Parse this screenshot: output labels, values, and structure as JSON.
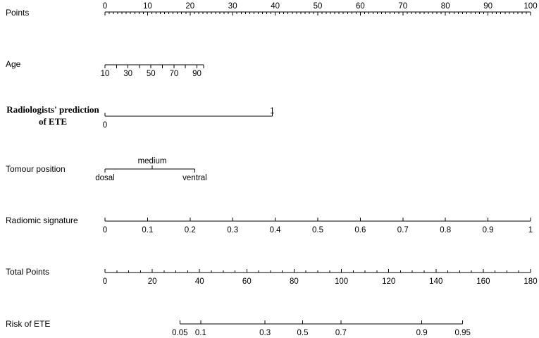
{
  "chart_data": {
    "type": "nomogram",
    "rows": [
      {
        "id": "points",
        "label": "Points",
        "label_style": "sans",
        "scale": [
          0,
          100
        ],
        "ticks": [
          {
            "v": 0,
            "t": "0"
          },
          {
            "v": 10,
            "t": "10"
          },
          {
            "v": 20,
            "t": "20"
          },
          {
            "v": 30,
            "t": "30"
          },
          {
            "v": 40,
            "t": "40"
          },
          {
            "v": 50,
            "t": "50"
          },
          {
            "v": 60,
            "t": "60"
          },
          {
            "v": 70,
            "t": "70"
          },
          {
            "v": 80,
            "t": "80"
          },
          {
            "v": 90,
            "t": "90"
          },
          {
            "v": 100,
            "t": "100"
          }
        ],
        "minor_step": 1,
        "tick_side": "down",
        "label_side": "above"
      },
      {
        "id": "age",
        "label": "Age",
        "label_style": "sans",
        "scale": [
          10,
          90
        ],
        "ticks": [
          {
            "v": 10,
            "t": "10",
            "p": 0
          },
          {
            "v": 20,
            "t": "",
            "p": 2.7
          },
          {
            "v": 30,
            "t": "30",
            "p": 5.4
          },
          {
            "v": 40,
            "t": "",
            "p": 8.1
          },
          {
            "v": 50,
            "t": "50",
            "p": 10.8
          },
          {
            "v": 60,
            "t": "",
            "p": 13.5
          },
          {
            "v": 70,
            "t": "70",
            "p": 16.2
          },
          {
            "v": 80,
            "t": "",
            "p": 18.9
          },
          {
            "v": 90,
            "t": "90",
            "p": 21.6
          },
          {
            "v": null,
            "t": "",
            "p": 23.2
          }
        ],
        "tick_side": "down",
        "label_side": "below"
      },
      {
        "id": "radiologists",
        "label": "Radiologists' prediction",
        "label2": "of ETE",
        "label_style": "serif",
        "ticks": [
          {
            "v": 0,
            "t": "0",
            "p": 0,
            "side": "below"
          },
          {
            "v": 1,
            "t": "1",
            "p": 39.3,
            "side": "above"
          }
        ],
        "tick_side": "up"
      },
      {
        "id": "tumour",
        "label": "Tomour position",
        "label_style": "sans",
        "ticks": [
          {
            "v": "dosal",
            "t": "dosal",
            "p": 0,
            "side": "below",
            "dir": "down"
          },
          {
            "v": "medium",
            "t": "medium",
            "p": 11.1,
            "side": "above",
            "dir": "up"
          },
          {
            "v": "ventral",
            "t": "ventral",
            "p": 21.1,
            "side": "below",
            "dir": "down"
          }
        ]
      },
      {
        "id": "radiomic",
        "label": "Radiomic signature",
        "label_style": "sans",
        "scale": [
          0,
          1
        ],
        "ticks": [
          {
            "v": 0,
            "t": "0"
          },
          {
            "v": 0.1,
            "t": "0.1"
          },
          {
            "v": 0.2,
            "t": "0.2"
          },
          {
            "v": 0.3,
            "t": "0.3"
          },
          {
            "v": 0.4,
            "t": "0.4"
          },
          {
            "v": 0.5,
            "t": "0.5"
          },
          {
            "v": 0.6,
            "t": "0.6"
          },
          {
            "v": 0.7,
            "t": "0.7"
          },
          {
            "v": 0.8,
            "t": "0.8"
          },
          {
            "v": 0.9,
            "t": "0.9"
          },
          {
            "v": 1,
            "t": "1"
          }
        ],
        "tick_side": "up",
        "label_side": "below"
      },
      {
        "id": "total",
        "label": "Total Points",
        "label_style": "sans",
        "scale": [
          0,
          180
        ],
        "ticks": [
          {
            "v": 0,
            "t": "0"
          },
          {
            "v": 20,
            "t": "20"
          },
          {
            "v": 40,
            "t": "40"
          },
          {
            "v": 60,
            "t": "60"
          },
          {
            "v": 80,
            "t": "80"
          },
          {
            "v": 100,
            "t": "100"
          },
          {
            "v": 120,
            "t": "120"
          },
          {
            "v": 140,
            "t": "140"
          },
          {
            "v": 160,
            "t": "160"
          },
          {
            "v": 180,
            "t": "180"
          }
        ],
        "minor_step": 5,
        "tick_side": "up",
        "label_side": "below"
      },
      {
        "id": "risk",
        "label": "Risk of ETE",
        "label_style": "sans",
        "ticks": [
          {
            "v": 0.05,
            "t": "0.05",
            "tp": 31.7
          },
          {
            "v": 0.1,
            "t": "0.1",
            "tp": 40.5
          },
          {
            "v": 0.3,
            "t": "0.3",
            "tp": 67.7
          },
          {
            "v": 0.5,
            "t": "0.5",
            "tp": 83.6
          },
          {
            "v": 0.7,
            "t": "0.7",
            "tp": 99.8
          },
          {
            "v": 0.9,
            "t": "0.9",
            "tp": 134.0
          },
          {
            "v": 0.95,
            "t": "0.95",
            "tp": 151.3
          }
        ],
        "tick_side": "up",
        "label_side": "below"
      }
    ]
  }
}
